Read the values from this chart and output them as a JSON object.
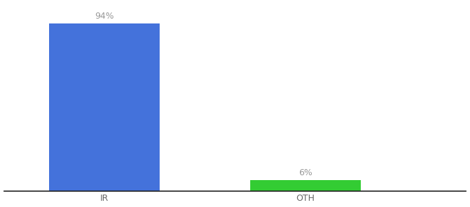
{
  "categories": [
    "IR",
    "OTH"
  ],
  "values": [
    94,
    6
  ],
  "bar_colors": [
    "#4472db",
    "#33cc33"
  ],
  "label_texts": [
    "94%",
    "6%"
  ],
  "ylim": [
    0,
    105
  ],
  "background_color": "#ffffff",
  "label_color": "#999999",
  "tick_label_color": "#666666",
  "bar_width": 0.55,
  "x_positions": [
    1,
    2
  ],
  "xlim": [
    0.5,
    2.8
  ],
  "figsize": [
    6.8,
    3.0
  ],
  "dpi": 100
}
